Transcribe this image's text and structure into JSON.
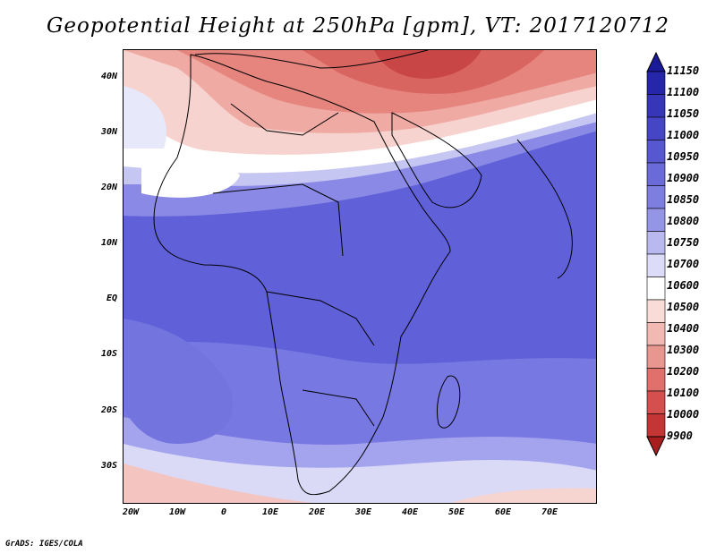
{
  "title": "Geopotential Height at 250hPa [gpm], VT: 2017120712",
  "credit": "GrADS: IGES/COLA",
  "lat_labels": [
    "40N",
    "30N",
    "20N",
    "10N",
    "EQ",
    "10S",
    "20S",
    "30S"
  ],
  "lon_labels": [
    "20W",
    "10W",
    "0",
    "10E",
    "20E",
    "30E",
    "40E",
    "50E",
    "60E",
    "70E"
  ],
  "colorbar": {
    "labels": [
      "11150",
      "11100",
      "11050",
      "11000",
      "10950",
      "10900",
      "10850",
      "10800",
      "10750",
      "10700",
      "10600",
      "10500",
      "10400",
      "10300",
      "10200",
      "10100",
      "10000",
      "9900"
    ],
    "colors": [
      "#1a1a99",
      "#2626a8",
      "#3636b6",
      "#4646c4",
      "#5757cf",
      "#6a6ad8",
      "#7e7ee0",
      "#9595e8",
      "#b9b9f0",
      "#dcdcf8",
      "#ffffff",
      "#f9dcd8",
      "#f2b8b2",
      "#ea9690",
      "#e0706c",
      "#d4504f",
      "#c33636",
      "#a81d1d"
    ]
  },
  "field_colors": {
    "deep": "#5a5ad8",
    "mid": "#6f6fe0",
    "light": "#9292ea",
    "pale": "#c9c9f4",
    "white": "#ffffff",
    "pink1": "#f8d7d3",
    "pink2": "#f0b4ae",
    "red1": "#e58880",
    "red2": "#d65e58",
    "red3": "#c43c3c"
  }
}
